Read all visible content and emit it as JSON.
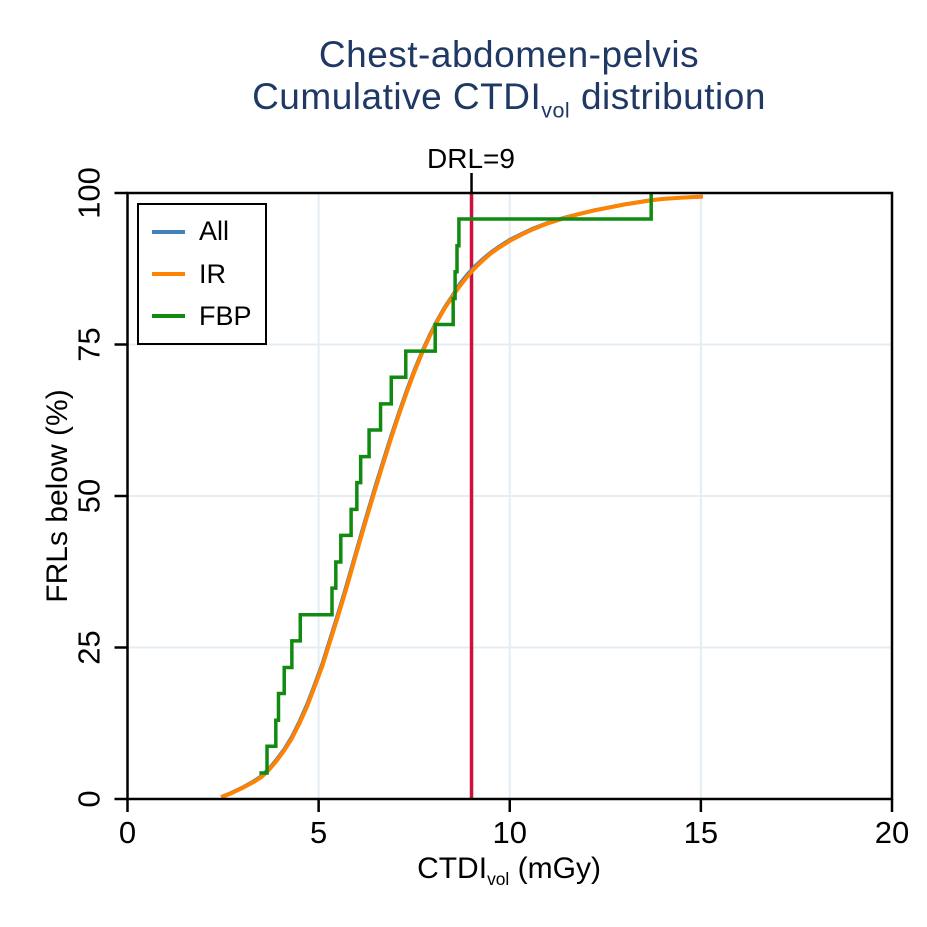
{
  "title": {
    "line1": "Chest-abdomen-pelvis",
    "line2_prefix": "Cumulative CTDI",
    "line2_sub": "vol",
    "line2_suffix": " distribution",
    "color": "#1F3864"
  },
  "annotation": {
    "drl_label": "DRL=9"
  },
  "axes": {
    "x": {
      "label_prefix": "CTDI",
      "label_sub": "vol",
      "label_suffix": " (mGy)",
      "ticks": [
        0,
        5,
        10,
        15,
        20
      ],
      "gridlines": [
        5,
        10,
        15
      ],
      "range": [
        0,
        20
      ]
    },
    "y": {
      "label": "FRLs below (%)",
      "ticks": [
        0,
        25,
        50,
        75,
        100
      ],
      "gridlines": [
        25,
        50,
        75,
        100
      ],
      "range": [
        0,
        100
      ]
    }
  },
  "legend": {
    "items": [
      {
        "label": "All"
      },
      {
        "label": "IR"
      },
      {
        "label": "FBP"
      }
    ]
  },
  "colors": {
    "grid": "#E4EDF3",
    "axis": "#000000",
    "background": "#FFFFFF",
    "title": "#1F3864",
    "reference": "#D0103C"
  },
  "chart_data": {
    "type": "line",
    "title": "Chest-abdomen-pelvis Cumulative CTDIvol distribution",
    "xlabel": "CTDIvol (mGy)",
    "ylabel": "FRLs below (%)",
    "xlim": [
      0,
      20
    ],
    "ylim": [
      0,
      100
    ],
    "x_ticks": [
      0,
      5,
      10,
      15,
      20
    ],
    "y_ticks": [
      0,
      25,
      50,
      75,
      100
    ],
    "grid": true,
    "legend_position": "top-left",
    "reference_line": {
      "x": 9,
      "label": "DRL=9",
      "color": "#D0103C"
    },
    "series": [
      {
        "name": "All",
        "color": "#4383BC",
        "style": "line",
        "width": 3.5,
        "x": [
          2.45,
          2.7,
          3.0,
          3.3,
          3.5,
          3.7,
          3.9,
          4.1,
          4.3,
          4.5,
          4.7,
          4.9,
          5.1,
          5.3,
          5.5,
          5.7,
          5.9,
          6.1,
          6.3,
          6.5,
          6.7,
          6.9,
          7.1,
          7.3,
          7.5,
          7.7,
          7.9,
          8.1,
          8.3,
          8.5,
          8.7,
          8.9,
          9.1,
          9.3,
          9.5,
          9.7,
          10.0,
          10.3,
          10.6,
          11.0,
          11.4,
          11.8,
          12.2,
          12.6,
          13.0,
          13.4,
          13.7,
          14.0,
          14.4,
          14.7,
          15.05
        ],
        "y": [
          0.35,
          1.0,
          1.9,
          2.95,
          3.8,
          5.0,
          6.55,
          8.25,
          10.3,
          12.85,
          15.7,
          19.0,
          22.45,
          26.45,
          30.5,
          34.7,
          39.1,
          43.5,
          47.8,
          52.0,
          56.05,
          60.05,
          63.8,
          67.4,
          70.75,
          73.8,
          76.55,
          79.0,
          81.2,
          83.1,
          85.1,
          86.65,
          88.0,
          89.15,
          90.2,
          91.1,
          92.3,
          93.25,
          94.15,
          95.1,
          95.9,
          96.55,
          97.15,
          97.65,
          98.15,
          98.55,
          98.85,
          99.05,
          99.2,
          99.3,
          99.4
        ]
      },
      {
        "name": "IR",
        "color": "#FF8200",
        "style": "line",
        "width": 4,
        "x": [
          2.45,
          2.7,
          3.0,
          3.3,
          3.5,
          3.7,
          3.9,
          4.1,
          4.3,
          4.5,
          4.7,
          4.9,
          5.1,
          5.3,
          5.5,
          5.7,
          5.9,
          6.1,
          6.3,
          6.5,
          6.7,
          6.9,
          7.1,
          7.3,
          7.5,
          7.7,
          7.9,
          8.1,
          8.3,
          8.5,
          8.7,
          8.9,
          9.1,
          9.3,
          9.5,
          9.7,
          10.0,
          10.3,
          10.6,
          11.0,
          11.4,
          11.8,
          12.2,
          12.6,
          13.0,
          13.4,
          13.7,
          14.0,
          14.4,
          14.7,
          15.05
        ],
        "y": [
          0.3,
          0.9,
          1.8,
          2.8,
          3.6,
          4.8,
          6.3,
          8.0,
          10.0,
          12.5,
          15.3,
          18.6,
          22.0,
          26.0,
          30.0,
          34.2,
          38.6,
          43.0,
          47.3,
          51.5,
          55.6,
          59.6,
          63.4,
          67.0,
          70.4,
          73.5,
          76.3,
          78.8,
          81.0,
          82.9,
          84.7,
          86.3,
          87.7,
          88.9,
          90.0,
          90.9,
          92.1,
          93.1,
          94.0,
          95.0,
          95.8,
          96.5,
          97.1,
          97.6,
          98.1,
          98.5,
          98.8,
          99.0,
          99.2,
          99.3,
          99.4
        ]
      },
      {
        "name": "FBP",
        "color": "#118A11",
        "style": "step",
        "width": 3.5,
        "x": [
          3.45,
          3.65,
          3.88,
          3.95,
          4.1,
          4.3,
          4.52,
          5.35,
          5.45,
          5.58,
          5.85,
          6.0,
          6.1,
          6.32,
          6.62,
          6.9,
          7.28,
          8.05,
          8.52,
          8.57,
          8.62,
          8.67,
          13.7
        ],
        "y": [
          4.3,
          8.7,
          13.0,
          17.4,
          21.7,
          26.1,
          30.4,
          34.8,
          39.1,
          43.5,
          47.8,
          52.2,
          56.5,
          60.9,
          65.2,
          69.6,
          73.9,
          78.3,
          82.6,
          87.0,
          91.3,
          95.7,
          100
        ]
      }
    ]
  }
}
